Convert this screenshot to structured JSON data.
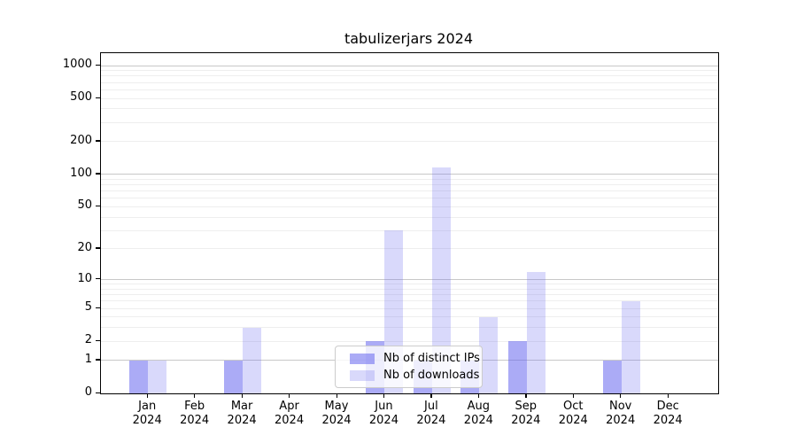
{
  "chart_data": {
    "type": "bar",
    "title": "tabulizerjars 2024",
    "x_categories": [
      "Jan",
      "Feb",
      "Mar",
      "Apr",
      "May",
      "Jun",
      "Jul",
      "Aug",
      "Sep",
      "Oct",
      "Nov",
      "Dec"
    ],
    "x_year_label": "2024",
    "series": [
      {
        "name": "Nb of distinct IPs",
        "color": "rgba(102,102,238,0.55)",
        "values": [
          1,
          0,
          1,
          0,
          0,
          2,
          1,
          1,
          2,
          0,
          1,
          0
        ]
      },
      {
        "name": "Nb of downloads",
        "color": "rgba(102,102,238,0.25)",
        "values": [
          1,
          0,
          3,
          0,
          0,
          30,
          115,
          4,
          12,
          0,
          6,
          0
        ]
      }
    ],
    "y_axis": {
      "scale": "log1p",
      "ticks": [
        0,
        1,
        2,
        5,
        10,
        20,
        50,
        100,
        200,
        500,
        1000
      ],
      "major_gridlines": [
        1,
        10,
        100,
        1000
      ],
      "top_value": 1000
    },
    "grid": {
      "show": true,
      "major_color": "#c8c8c8",
      "minor_color": "#eeeeee"
    },
    "legend": {
      "position": "inside-bottom-center"
    },
    "colors": {
      "axis": "#000000",
      "text": "#000000",
      "background": "#ffffff"
    }
  }
}
